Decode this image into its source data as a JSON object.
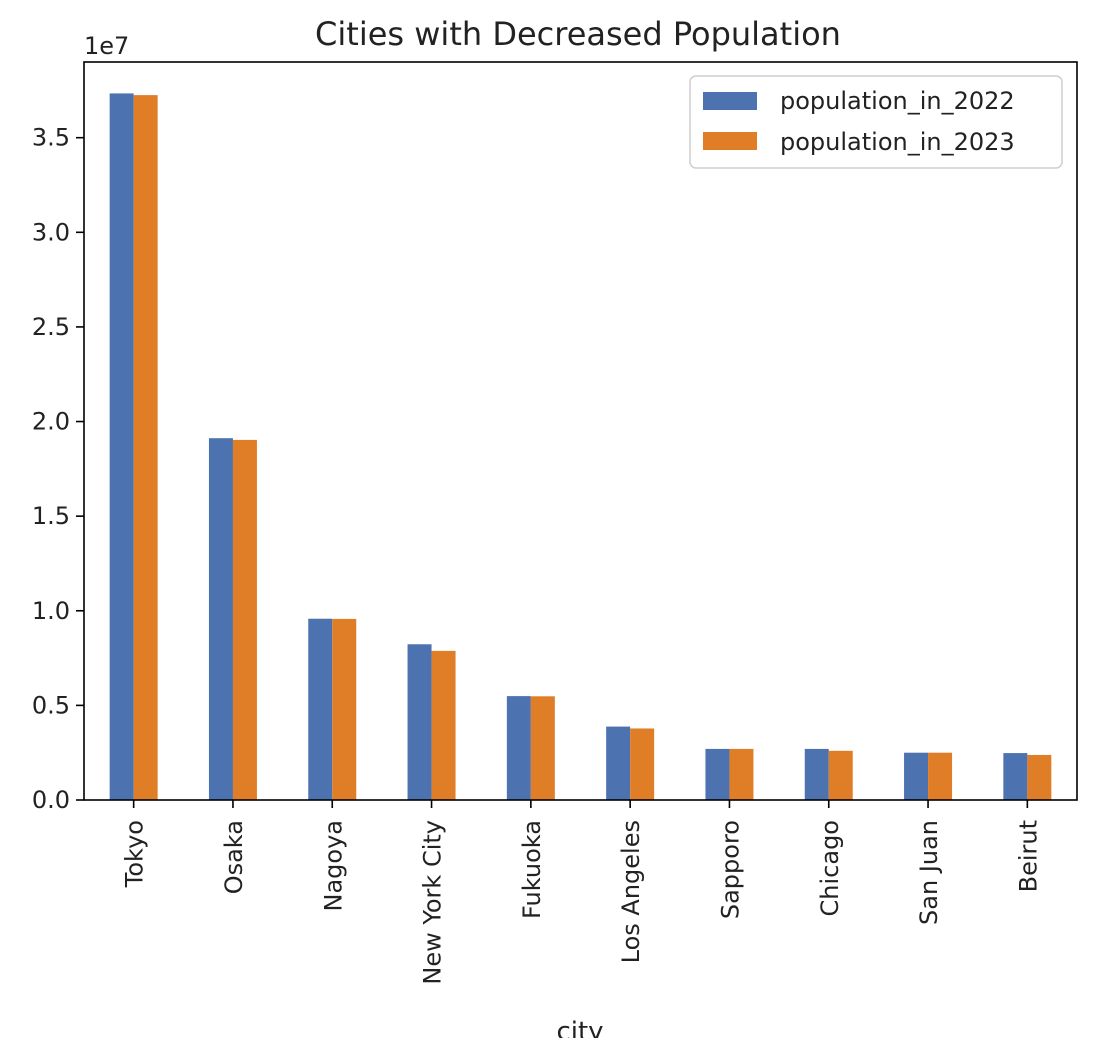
{
  "chart_data": {
    "type": "bar",
    "title": "Cities with Decreased Population",
    "xlabel": "city",
    "ylabel": "",
    "scale_label": "1e7",
    "categories": [
      "Tokyo",
      "Osaka",
      "Nagoya",
      "New York City",
      "Fukuoka",
      "Los Angeles",
      "Sapporo",
      "Chicago",
      "San Juan",
      "Beirut"
    ],
    "series": [
      {
        "name": "population_in_2022",
        "color": "#4c72b0",
        "values": [
          37340000,
          19120000,
          9580000,
          8230000,
          5490000,
          3880000,
          2700000,
          2700000,
          2500000,
          2480000
        ]
      },
      {
        "name": "population_in_2023",
        "color": "#e07e27",
        "values": [
          37250000,
          19030000,
          9570000,
          7880000,
          5480000,
          3780000,
          2700000,
          2600000,
          2500000,
          2380000
        ]
      }
    ],
    "ylim": [
      0,
      39000000
    ],
    "yticks": [
      0,
      5000000,
      10000000,
      15000000,
      20000000,
      25000000,
      30000000,
      35000000
    ],
    "ytick_labels": [
      "0.0",
      "0.5",
      "1.0",
      "1.5",
      "2.0",
      "2.5",
      "3.0",
      "3.5"
    ],
    "grid": false,
    "legend_position": "top-right"
  }
}
